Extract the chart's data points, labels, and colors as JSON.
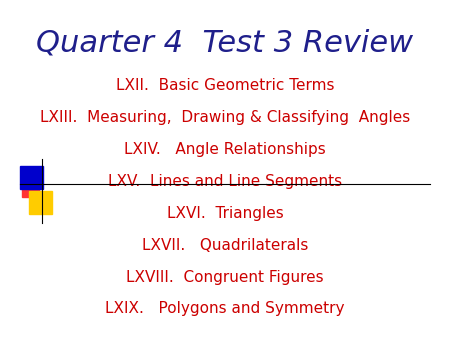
{
  "title": "Quarter 4  Test 3 Review",
  "title_color": "#1F1F8B",
  "title_fontsize": 22,
  "items": [
    "LXII.  Basic Geometric Terms",
    "LXIII.  Measuring,  Drawing & Classifying  Angles",
    "LXIV.   Angle Relationships",
    "LXV.  Lines and Line Segments",
    "LXVI.  Triangles",
    "LXVII.   Quadrilaterals",
    "LXVIII.  Congruent Figures",
    "LXIX.   Polygons and Symmetry"
  ],
  "item_color": "#CC0000",
  "item_fontsize": 11,
  "background_color": "#FFFFFF"
}
